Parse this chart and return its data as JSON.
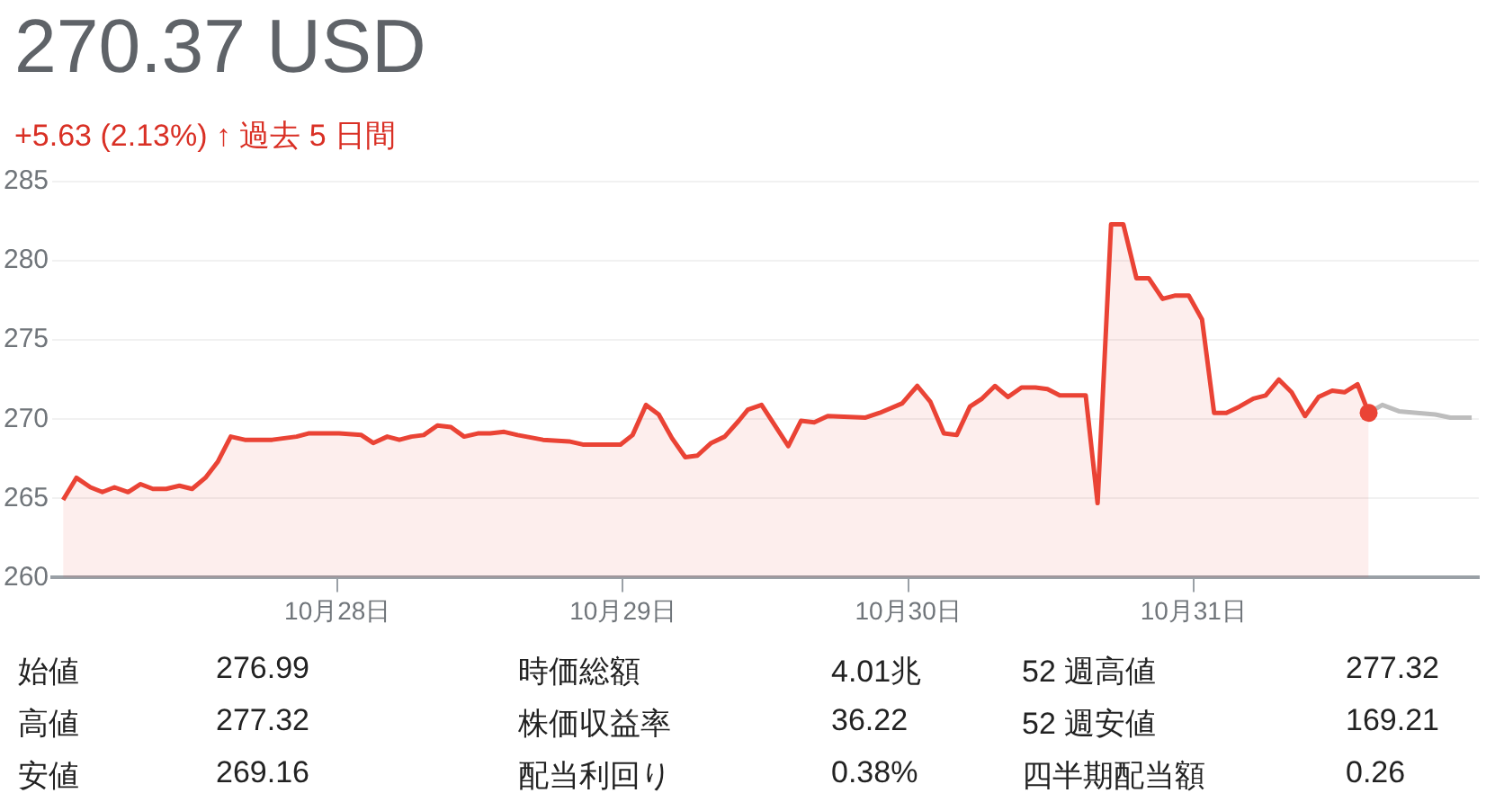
{
  "chart_data": {
    "type": "line",
    "title": "270.37 USD",
    "subtitle": "+5.63 (2.13%) ↑ 過去 5 日間",
    "xlim": [
      "--10-27",
      "--11-01"
    ],
    "xticks": [
      {
        "value": "--10-28",
        "label": "10月28日"
      },
      {
        "value": "--10-29",
        "label": "10月29日"
      },
      {
        "value": "--10-30",
        "label": "10月30日"
      },
      {
        "value": "--10-31",
        "label": "10月31日"
      }
    ],
    "ylim": [
      260,
      285
    ],
    "yticks": [
      260,
      265,
      270,
      275,
      280,
      285
    ],
    "grid": "y",
    "series": [
      {
        "type": "area",
        "color": "#ea4335",
        "x": [
          "--10-27T00:55",
          "--10-27T02:02",
          "--10-27T03:13",
          "--10-27T04:13",
          "--10-27T05:14",
          "--10-27T06:23",
          "--10-27T07:26",
          "--10-27T08:28",
          "--10-27T09:35",
          "--10-27T10:42",
          "--10-27T11:46",
          "--10-27T12:53",
          "--10-27T13:55",
          "--10-27T15:01",
          "--10-27T16:12",
          "--10-27T18:30",
          "--10-27T20:33",
          "--10-27T21:33",
          "--10-27T23:51",
          "--10-28T00:08",
          "--10-28T02:00",
          "--10-28T03:00",
          "--10-28T04:11",
          "--10-28T05:12",
          "--10-28T06:13",
          "--10-28T07:15",
          "--10-28T08:24",
          "--10-28T09:32",
          "--10-28T10:39",
          "--10-28T11:48",
          "--10-28T12:50",
          "--10-28T14:01",
          "--10-28T15:09",
          "--10-28T17:17",
          "--10-28T19:28",
          "--10-28T20:38",
          "--10-28T23:48",
          "--10-29T00:49",
          "--10-29T01:57",
          "--10-29T03:01",
          "--10-29T04:08",
          "--10-29T05:15",
          "--10-29T06:16",
          "--10-29T07:26",
          "--10-29T08:34",
          "--10-29T09:45",
          "--10-29T10:31",
          "--10-29T11:40",
          "--10-29T13:55",
          "--10-29T14:59",
          "--10-29T16:06",
          "--10-29T17:14",
          "--10-29T20:25",
          "--10-29T21:36",
          "--10-29T23:30",
          "--10-30T00:46",
          "--10-30T01:52",
          "--10-30T03:00",
          "--10-30T04:05",
          "--10-30T05:12",
          "--10-30T06:13",
          "--10-30T07:18",
          "--10-30T08:24",
          "--10-30T09:32",
          "--10-30T10:42",
          "--10-30T11:43",
          "--10-30T12:45",
          "--10-30T14:56",
          "--10-30T15:56",
          "--10-30T17:04",
          "--10-30T18:06",
          "--10-30T19:12",
          "--10-30T20:14",
          "--10-30T21:24",
          "--10-30T22:25",
          "--10-30T23:36",
          "--10-31T00:43",
          "--10-31T01:44",
          "--10-31T02:46",
          "--10-31T03:52",
          "--10-31T05:02",
          "--10-31T06:04",
          "--10-31T07:11",
          "--10-31T08:15",
          "--10-31T09:23",
          "--10-31T10:31",
          "--10-31T11:40",
          "--10-31T12:42",
          "--10-31T13:48",
          "--10-31T14:44"
        ],
        "values": [
          264.9,
          266.3,
          265.7,
          265.4,
          265.7,
          265.4,
          265.9,
          265.6,
          265.6,
          265.8,
          265.6,
          266.3,
          267.3,
          268.9,
          268.7,
          268.7,
          268.9,
          269.1,
          269.1,
          269.1,
          269.0,
          268.5,
          268.9,
          268.7,
          268.9,
          269.0,
          269.6,
          269.5,
          268.9,
          269.1,
          269.1,
          269.2,
          269.0,
          268.7,
          268.6,
          268.4,
          268.4,
          269.0,
          270.9,
          270.3,
          268.8,
          267.6,
          267.7,
          268.5,
          268.9,
          269.9,
          270.6,
          270.9,
          268.3,
          269.9,
          269.8,
          270.2,
          270.1,
          270.4,
          271.0,
          272.1,
          271.1,
          269.1,
          269.0,
          270.8,
          271.3,
          272.1,
          271.4,
          272.0,
          272.0,
          271.9,
          271.5,
          271.5,
          264.7,
          282.3,
          282.3,
          278.9,
          278.9,
          277.6,
          277.8,
          277.8,
          276.3,
          270.4,
          270.4,
          270.8,
          271.3,
          271.5,
          272.5,
          271.7,
          270.2,
          271.4,
          271.8,
          271.7,
          272.2,
          270.4
        ]
      },
      {
        "color": "#bdbdbd",
        "x": [
          "--10-31T14:44",
          "--10-31T15:53",
          "--10-31T17:17",
          "--10-31T20:20",
          "--10-31T21:36",
          "--10-31T23:24"
        ],
        "values": [
          270.4,
          270.9,
          270.5,
          270.3,
          270.1,
          270.1
        ]
      },
      {
        "type": "scatter",
        "color": "#ea4335",
        "x": [
          "--10-31T14:44"
        ],
        "values": [
          270.4
        ]
      }
    ],
    "annotations": [
      "始値",
      "276.99",
      "時価総額",
      "4.01兆",
      "52 週高値",
      "277.32",
      "高値",
      "277.32",
      "株価収益率",
      "36.22",
      "52 週安値",
      "169.21",
      "安値",
      "269.16",
      "配当利回り",
      "0.38%",
      "四半期配当額",
      "0.26"
    ]
  }
}
